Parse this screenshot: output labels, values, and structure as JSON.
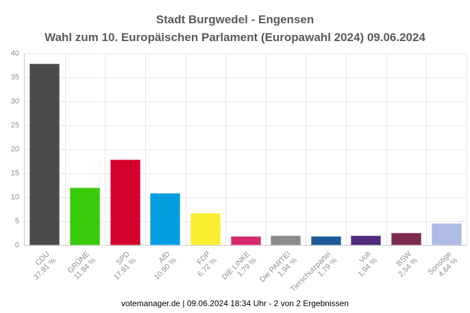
{
  "header": {
    "title": "Stadt Burgwedel - Engensen",
    "subtitle": "Wahl zum 10. Europäischen Parlament (Europawahl 2024) 09.06.2024"
  },
  "footer": {
    "text": "votemanager.de | 09.06.2024 18:34 Uhr - 2 von 2 Ergebnissen"
  },
  "chart_data": {
    "type": "bar",
    "title": "Stadt Burgwedel - Engensen",
    "subtitle": "Wahl zum 10. Europäischen Parlament (Europawahl 2024) 09.06.2024",
    "categories": [
      "CDU",
      "GRÜNE",
      "SPD",
      "AfD",
      "FDP",
      "DIE LINKE",
      "Die PARTEI",
      "Tierschutzpartei",
      "Volt",
      "BSW",
      "Sonstige"
    ],
    "values": [
      37.91,
      11.94,
      17.91,
      10.9,
      6.72,
      1.79,
      1.94,
      1.79,
      1.94,
      2.54,
      4.64
    ],
    "value_labels": [
      "37,91 %",
      "11,94 %",
      "17,91 %",
      "10,90 %",
      "6,72 %",
      "1,79 %",
      "1,94 %",
      "1,79 %",
      "1,94 %",
      "2,54 %",
      "4,64 %"
    ],
    "bar_colors": [
      "#4b4b4b",
      "#39ca0a",
      "#d4002d",
      "#009ee0",
      "#fbee31",
      "#d42a6e",
      "#8b8b8b",
      "#1b5a96",
      "#4f2a7d",
      "#7c2a50",
      "#aebce6"
    ],
    "xlabel": "",
    "ylabel": "",
    "ylim": [
      0,
      40
    ],
    "yticks": [
      0,
      5,
      10,
      15,
      20,
      25,
      30,
      35,
      40
    ],
    "grid": true,
    "legend": "none",
    "styles": {
      "title_color": "#595959",
      "grid_color": "#e6e6e6",
      "axis_color": "#c6c6c6",
      "tick_label_color": "#8e8e8e",
      "footer_color": "#000000"
    }
  }
}
